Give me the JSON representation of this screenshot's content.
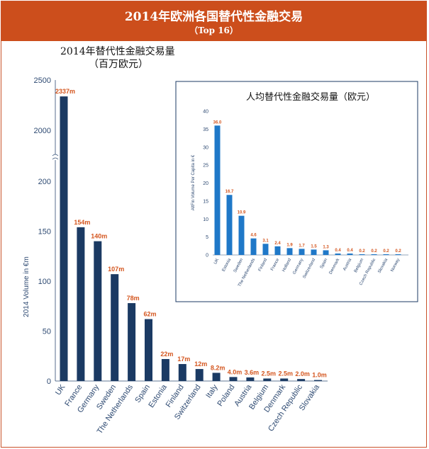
{
  "header": {
    "title": "2014年欧洲各国替代性金融交易",
    "subtitle": "（Top 16）"
  },
  "chart_title_line1": "2014年替代性金融交易量",
  "chart_title_line2": "（百万欧元）",
  "colors": {
    "header": "#cc4e1c",
    "bar_main": "#1b3a63",
    "bar_inset": "#1f78c8",
    "label": "#d4561f",
    "axis": "#2e4a72"
  },
  "chart_data": [
    {
      "type": "bar",
      "title": "2014年替代性金融交易量（百万欧元）",
      "ylabel": "2014 Volume in €m",
      "axis_break": "between 150 and 200",
      "ylim": [
        0,
        2500
      ],
      "yticks": [
        "0",
        "50",
        "100",
        "150",
        "200",
        "2000",
        "2500"
      ],
      "categories": [
        "UK",
        "France",
        "Germany",
        "Sweden",
        "The Netherlands",
        "Spain",
        "Estonia",
        "Finland",
        "Switzerland",
        "Italy",
        "Poland",
        "Austria",
        "Belgium",
        "Denmark",
        "Czech Republic",
        "Slovakia"
      ],
      "values": [
        2337,
        154,
        140,
        107,
        78,
        62,
        22,
        17,
        12,
        8.2,
        4.0,
        3.6,
        2.5,
        2.5,
        2.0,
        1.0
      ],
      "data_labels": [
        "2337m",
        "154m",
        "140m",
        "107m",
        "78m",
        "62m",
        "22m",
        "17m",
        "12m",
        "8.2m",
        "4.0m",
        "3.6m",
        "2.5m",
        "2.5m",
        "2.0m",
        "1.0m"
      ]
    },
    {
      "type": "bar",
      "title": "人均替代性金融交易量（欧元）",
      "ylabel": "AltFin Volume Per Capita in €",
      "ylim": [
        0,
        40
      ],
      "yticks": [
        "0",
        "5",
        "10",
        "15",
        "20",
        "25",
        "30",
        "35",
        "40"
      ],
      "categories": [
        "UK",
        "Estonia",
        "Sweden",
        "The Netherlands",
        "Finland",
        "France",
        "Holland",
        "Germany",
        "Switzerland",
        "Spain",
        "Denmark",
        "Austria",
        "Belgium",
        "Czech Republic",
        "Slovakia",
        "Norway"
      ],
      "values": [
        36.0,
        16.7,
        10.9,
        4.6,
        3.1,
        2.4,
        1.9,
        1.7,
        1.5,
        1.3,
        0.4,
        0.4,
        0.2,
        0.2,
        0.2,
        0.2
      ],
      "data_labels": [
        "36.0",
        "16.7",
        "10.9",
        "4.6",
        "3.1",
        "2.4",
        "1.9",
        "1.7",
        "1.5",
        "1.3",
        "0.4",
        "0.4",
        "0.2",
        "0.2",
        "0.2",
        "0.2"
      ]
    }
  ]
}
